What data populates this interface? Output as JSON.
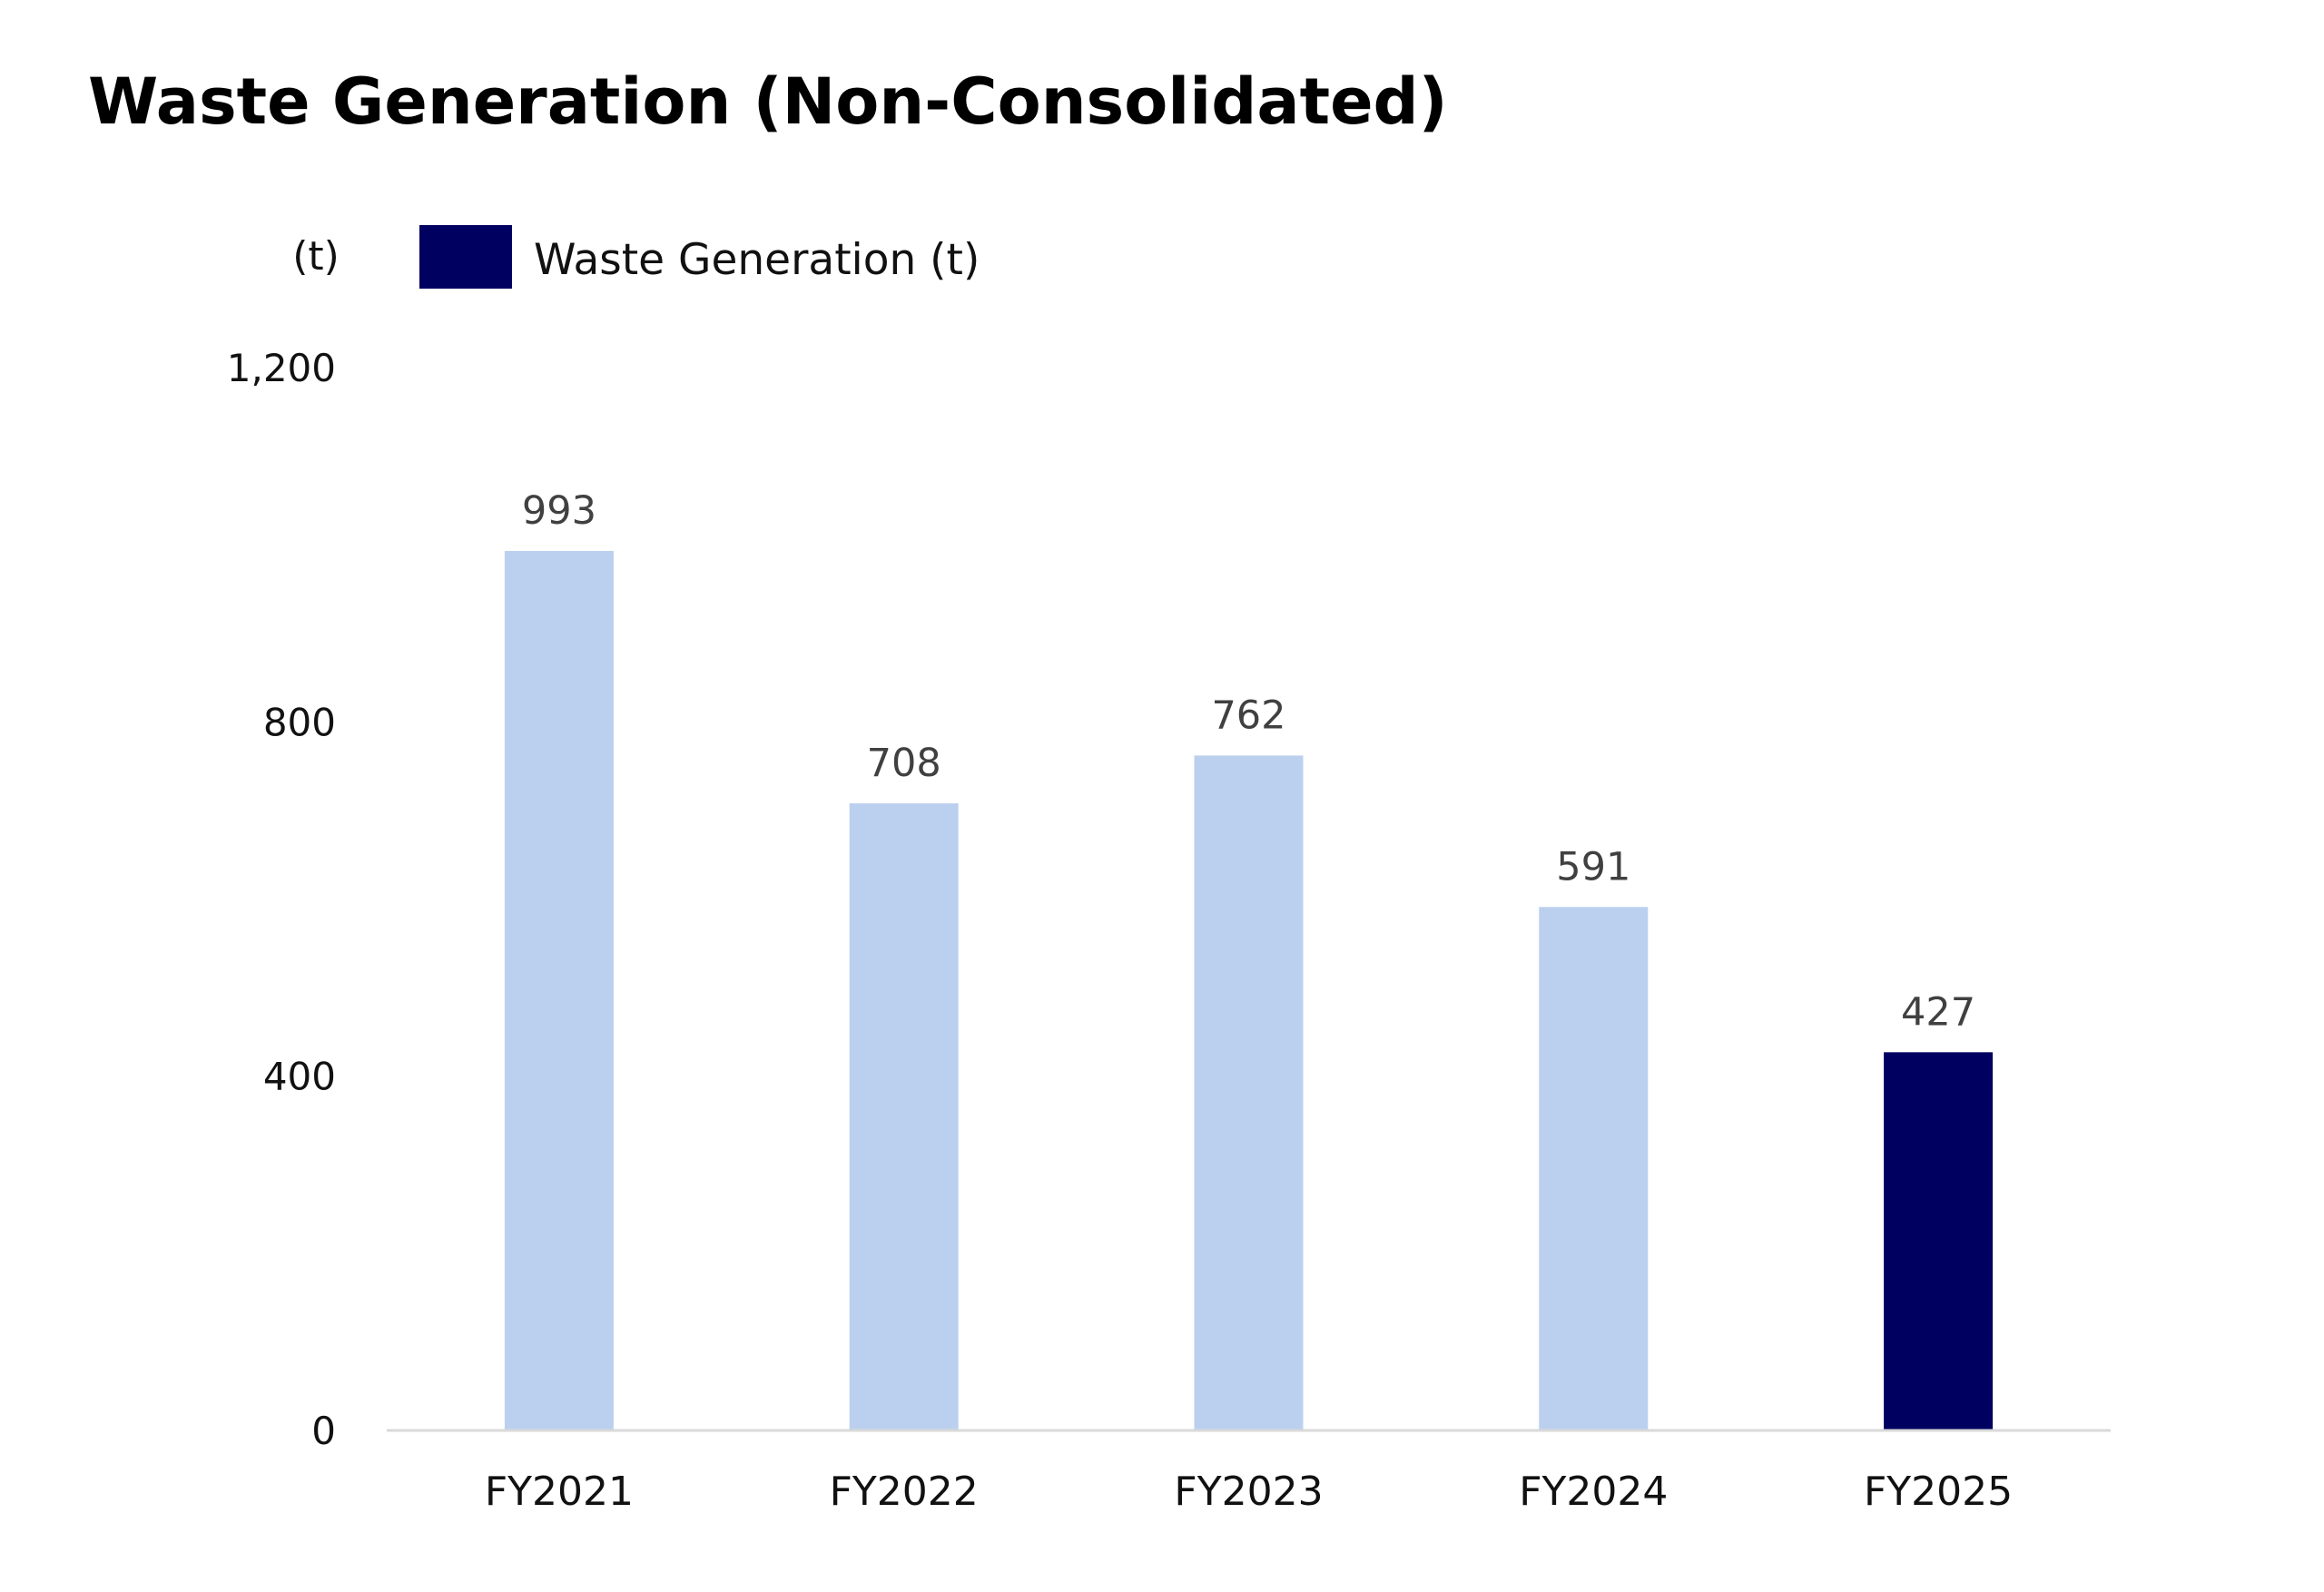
{
  "chart_data": {
    "type": "bar",
    "title": "Waste Generation (Non-Consolidated)",
    "ylabel": "(t)",
    "xlabel": "",
    "categories": [
      "FY2021",
      "FY2022",
      "FY2023",
      "FY2024",
      "FY2025"
    ],
    "series": [
      {
        "name": "Waste Generation (t)",
        "values": [
          993,
          708,
          762,
          591,
          427
        ]
      }
    ],
    "data_labels": [
      "993",
      "708",
      "762",
      "591",
      "427"
    ],
    "ylim": [
      0,
      1200
    ],
    "yticks": [
      0,
      400,
      800,
      1200
    ],
    "ytick_labels": [
      "0",
      "400",
      "800",
      "1,200"
    ],
    "grid": false,
    "legend": {
      "position": "top-left",
      "entries": [
        "Waste Generation (t)"
      ]
    },
    "colors": {
      "past_bars": "#bbd0ee",
      "highlight_bar": "#000060",
      "legend_swatch": "#000060",
      "baseline": "#d9d9d9"
    },
    "highlight_category": "FY2025"
  }
}
